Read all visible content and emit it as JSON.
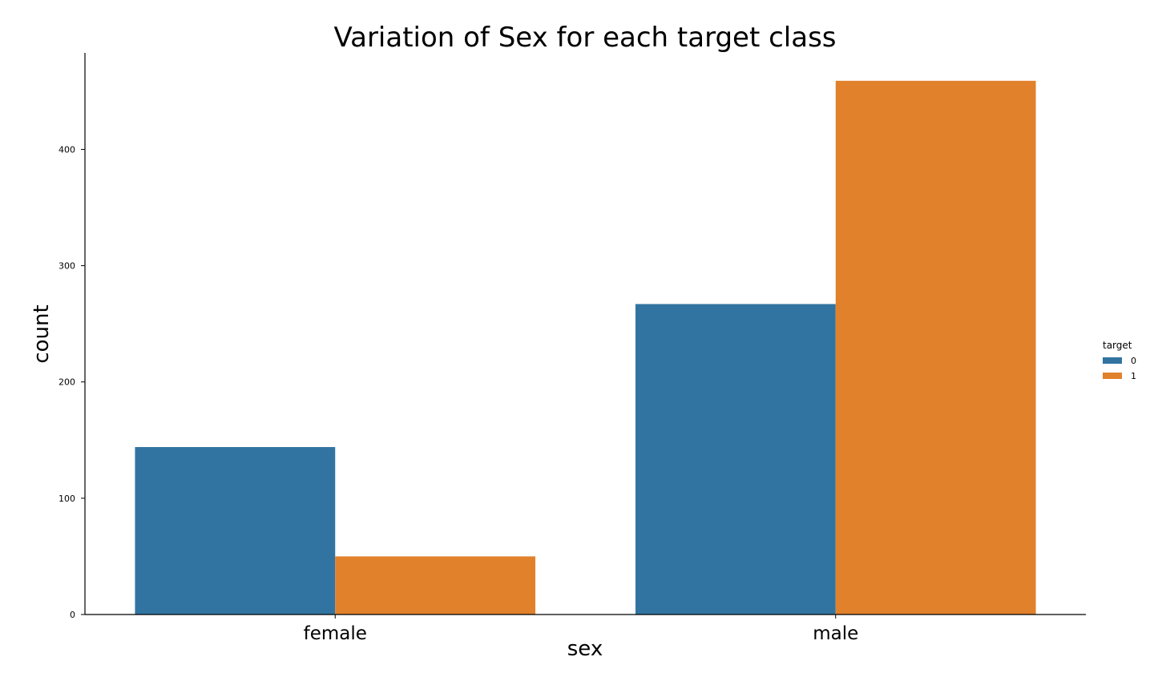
{
  "chart_data": {
    "type": "bar",
    "title": "Variation of Sex for each target class",
    "xlabel": "sex",
    "ylabel": "count",
    "categories": [
      "female",
      "male"
    ],
    "series": [
      {
        "name": "0",
        "color": "#3274a1",
        "values": [
          144,
          267
        ]
      },
      {
        "name": "1",
        "color": "#e1812c",
        "values": [
          50,
          459
        ]
      }
    ],
    "ylim": [
      0,
      483
    ],
    "yticks": [
      0,
      100,
      200,
      300,
      400
    ],
    "legend": {
      "title": "target",
      "placement": "right"
    },
    "grid": false
  }
}
